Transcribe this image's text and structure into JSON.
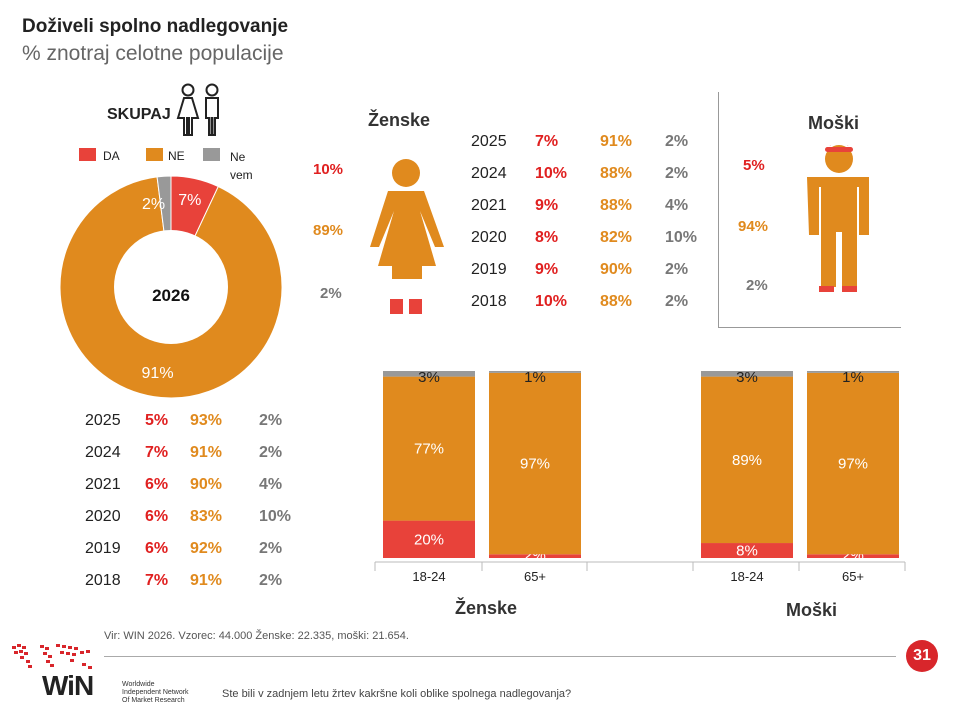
{
  "header": {
    "title": "Doživeli spolno nadlegovanje",
    "subtitle": "% znotraj celotne populacije"
  },
  "colors": {
    "da": "#E8423A",
    "ne": "#E08A1E",
    "nevem": "#999999",
    "accent_red": "#E02020"
  },
  "total": {
    "label": "SKUPAJ",
    "icon": "couple-icon",
    "legend": [
      {
        "label": "DA",
        "color": "#E8423A"
      },
      {
        "label": "NE",
        "color": "#E08A1E"
      },
      {
        "label": "Ne vem",
        "color": "#999999"
      }
    ],
    "center_label": "2026",
    "rows": [
      {
        "year": "2025",
        "da": "5%",
        "ne": "93%",
        "nevem": "2%"
      },
      {
        "year": "2024",
        "da": "7%",
        "ne": "91%",
        "nevem": "2%"
      },
      {
        "year": "2021",
        "da": "6%",
        "ne": "90%",
        "nevem": "4%"
      },
      {
        "year": "2020",
        "da": "6%",
        "ne": "83%",
        "nevem": "10%"
      },
      {
        "year": "2019",
        "da": "6%",
        "ne": "92%",
        "nevem": "2%"
      },
      {
        "year": "2018",
        "da": "7%",
        "ne": "91%",
        "nevem": "2%"
      }
    ]
  },
  "women": {
    "label": "Ženske",
    "icon": "woman-icon",
    "da": "10%",
    "ne": "89%",
    "nevem": "2%",
    "rows": [
      {
        "year": "2025",
        "da": "7%",
        "ne": "91%",
        "nevem": "2%"
      },
      {
        "year": "2024",
        "da": "10%",
        "ne": "88%",
        "nevem": "2%"
      },
      {
        "year": "2021",
        "da": "9%",
        "ne": "88%",
        "nevem": "4%"
      },
      {
        "year": "2020",
        "da": "8%",
        "ne": "82%",
        "nevem": "10%"
      },
      {
        "year": "2019",
        "da": "9%",
        "ne": "90%",
        "nevem": "2%"
      },
      {
        "year": "2018",
        "da": "10%",
        "ne": "88%",
        "nevem": "2%"
      }
    ]
  },
  "men": {
    "label": "Moški",
    "icon": "man-icon",
    "da": "5%",
    "ne": "94%",
    "nevem": "2%"
  },
  "chart_data": [
    {
      "type": "pie",
      "center_label": "2026",
      "categories": [
        "DA",
        "NE",
        "Ne vem"
      ],
      "values": [
        7,
        91,
        2
      ],
      "labels": [
        "7%",
        "91%",
        "2%"
      ],
      "legend": "top"
    },
    {
      "type": "bar",
      "stacked": true,
      "group": "Ženske",
      "categories": [
        "18-24",
        "65+"
      ],
      "series": [
        {
          "name": "DA",
          "values": [
            20,
            2
          ],
          "labels": [
            "20%",
            "2%"
          ]
        },
        {
          "name": "NE",
          "values": [
            77,
            97
          ],
          "labels": [
            "77%",
            "97%"
          ]
        },
        {
          "name": "Ne vem",
          "values": [
            3,
            1
          ],
          "labels": [
            "3%",
            "1%"
          ]
        }
      ]
    },
    {
      "type": "bar",
      "stacked": true,
      "group": "Moški",
      "categories": [
        "18-24",
        "65+"
      ],
      "series": [
        {
          "name": "DA",
          "values": [
            8,
            2
          ],
          "labels": [
            "8%",
            "2%"
          ]
        },
        {
          "name": "NE",
          "values": [
            89,
            97
          ],
          "labels": [
            "89%",
            "97%"
          ]
        },
        {
          "name": "Ne vem",
          "values": [
            3,
            1
          ],
          "labels": [
            "3%",
            "1%"
          ]
        }
      ]
    }
  ],
  "footer": {
    "source": "Vir: WIN 2026.  Vzorec: 44.000  Ženske: 22.335,  moški: 21.654.",
    "page_number": "31",
    "logo_text": "WiN",
    "logo_tagline": [
      "Worldwide",
      "Independent Network",
      "Of Market Research"
    ],
    "question": "Ste bili v zadnjem letu žrtev kakršne koli oblike spolnega nadlegovanja?"
  }
}
